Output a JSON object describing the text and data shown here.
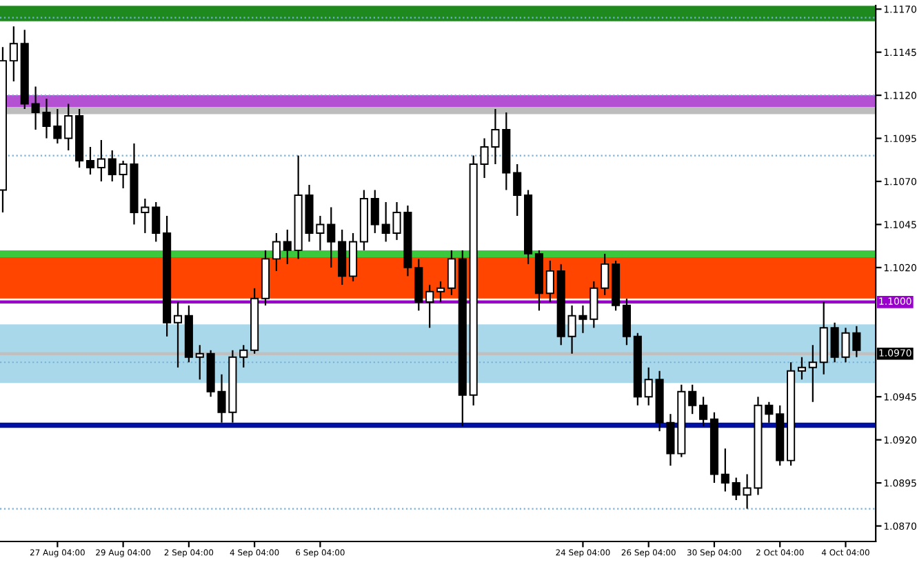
{
  "chart_data": {
    "type": "candlestick",
    "categories": [
      null,
      null,
      null,
      null,
      null,
      "27 Aug 04:00",
      null,
      null,
      null,
      null,
      null,
      "29 Aug 04:00",
      null,
      null,
      null,
      null,
      null,
      "2 Sep 04:00",
      null,
      null,
      null,
      null,
      null,
      "4 Sep 04:00",
      null,
      null,
      null,
      null,
      null,
      "6 Sep 04:00",
      null,
      null,
      null,
      null,
      null,
      null,
      null,
      null,
      null,
      null,
      null,
      null,
      null,
      null,
      null,
      null,
      null,
      null,
      null,
      null,
      null,
      null,
      null,
      "24 Sep 04:00",
      null,
      null,
      null,
      null,
      null,
      "26 Sep 04:00",
      null,
      null,
      null,
      null,
      null,
      "30 Sep 04:00",
      null,
      null,
      null,
      null,
      null,
      "2 Oct 04:00",
      null,
      null,
      null,
      null,
      null,
      "4 Oct 04:00",
      null
    ],
    "ohlc": [
      [
        1.1065,
        1.1148,
        1.1052,
        1.114
      ],
      [
        1.114,
        1.116,
        1.1128,
        1.115
      ],
      [
        1.115,
        1.1158,
        1.1112,
        1.1115
      ],
      [
        1.1115,
        1.1125,
        1.11,
        1.111
      ],
      [
        1.111,
        1.1118,
        1.1095,
        1.1102
      ],
      [
        1.1102,
        1.1112,
        1.1092,
        1.1095
      ],
      [
        1.1095,
        1.1115,
        1.1088,
        1.1108
      ],
      [
        1.1108,
        1.1112,
        1.1078,
        1.1082
      ],
      [
        1.1082,
        1.109,
        1.1074,
        1.1078
      ],
      [
        1.1078,
        1.1094,
        1.107,
        1.1083
      ],
      [
        1.1083,
        1.1088,
        1.107,
        1.1074
      ],
      [
        1.1074,
        1.1082,
        1.1066,
        1.108
      ],
      [
        1.108,
        1.1092,
        1.1045,
        1.1052
      ],
      [
        1.1052,
        1.106,
        1.104,
        1.1055
      ],
      [
        1.1055,
        1.1058,
        1.1035,
        1.104
      ],
      [
        1.104,
        1.105,
        1.098,
        1.0988
      ],
      [
        1.0988,
        1.1,
        1.0962,
        1.0992
      ],
      [
        1.0992,
        1.0998,
        1.0965,
        1.0968
      ],
      [
        1.0968,
        1.0975,
        1.0955,
        1.097
      ],
      [
        1.097,
        1.0972,
        1.0945,
        1.0948
      ],
      [
        1.0948,
        1.0958,
        1.093,
        1.0936
      ],
      [
        1.0936,
        1.0972,
        1.093,
        1.0968
      ],
      [
        1.0968,
        1.0975,
        1.0962,
        1.0972
      ],
      [
        1.0972,
        1.1008,
        1.097,
        1.1002
      ],
      [
        1.1002,
        1.103,
        1.0998,
        1.1025
      ],
      [
        1.1025,
        1.104,
        1.1018,
        1.1035
      ],
      [
        1.1035,
        1.1042,
        1.1022,
        1.103
      ],
      [
        1.103,
        1.1085,
        1.1025,
        1.1062
      ],
      [
        1.1062,
        1.1068,
        1.1035,
        1.104
      ],
      [
        1.104,
        1.105,
        1.103,
        1.1045
      ],
      [
        1.1045,
        1.1055,
        1.102,
        1.1035
      ],
      [
        1.1035,
        1.1042,
        1.101,
        1.1015
      ],
      [
        1.1015,
        1.104,
        1.1012,
        1.1035
      ],
      [
        1.1035,
        1.1065,
        1.103,
        1.106
      ],
      [
        1.106,
        1.1065,
        1.104,
        1.1045
      ],
      [
        1.1045,
        1.1058,
        1.1035,
        1.104
      ],
      [
        1.104,
        1.1058,
        1.1036,
        1.1052
      ],
      [
        1.1052,
        1.1056,
        1.1015,
        1.102
      ],
      [
        1.102,
        1.1025,
        1.0995,
        1.1
      ],
      [
        1.1,
        1.101,
        1.0985,
        1.1006
      ],
      [
        1.1006,
        1.1012,
        1.1,
        1.1008
      ],
      [
        1.1008,
        1.103,
        1.1004,
        1.1025
      ],
      [
        1.1025,
        1.103,
        1.0928,
        1.0946
      ],
      [
        1.0946,
        1.1085,
        1.094,
        1.108
      ],
      [
        1.108,
        1.1095,
        1.1072,
        1.109
      ],
      [
        1.109,
        1.1112,
        1.108,
        1.11
      ],
      [
        1.11,
        1.111,
        1.1065,
        1.1075
      ],
      [
        1.1075,
        1.108,
        1.105,
        1.1062
      ],
      [
        1.1062,
        1.1065,
        1.1022,
        1.1028
      ],
      [
        1.1028,
        1.103,
        1.0995,
        1.1005
      ],
      [
        1.1005,
        1.1024,
        1.1,
        1.1018
      ],
      [
        1.1018,
        1.1022,
        1.0975,
        1.098
      ],
      [
        1.098,
        1.0998,
        1.097,
        1.0992
      ],
      [
        1.0992,
        1.0998,
        1.0982,
        1.099
      ],
      [
        1.099,
        1.1012,
        1.0985,
        1.1008
      ],
      [
        1.1008,
        1.1028,
        1.1004,
        1.1022
      ],
      [
        1.1022,
        1.1024,
        1.0995,
        1.0998
      ],
      [
        1.0998,
        1.1002,
        1.0975,
        1.098
      ],
      [
        1.098,
        1.0982,
        1.094,
        1.0945
      ],
      [
        1.0945,
        1.0962,
        1.094,
        1.0955
      ],
      [
        1.0955,
        1.096,
        1.0925,
        1.093
      ],
      [
        1.093,
        1.0935,
        1.0905,
        1.0912
      ],
      [
        1.0912,
        1.0952,
        1.091,
        1.0948
      ],
      [
        1.0948,
        1.0952,
        1.0935,
        1.094
      ],
      [
        1.094,
        1.0945,
        1.0928,
        1.0932
      ],
      [
        1.0932,
        1.0936,
        1.0895,
        1.09
      ],
      [
        1.09,
        1.0915,
        1.089,
        1.0895
      ],
      [
        1.0895,
        1.0898,
        1.0885,
        1.0888
      ],
      [
        1.0888,
        1.09,
        1.088,
        1.0892
      ],
      [
        1.0892,
        1.0945,
        1.0888,
        1.094
      ],
      [
        1.094,
        1.0942,
        1.093,
        1.0935
      ],
      [
        1.0935,
        1.094,
        1.0905,
        1.0908
      ],
      [
        1.0908,
        1.0965,
        1.0905,
        1.096
      ],
      [
        1.096,
        1.0968,
        1.0955,
        1.0962
      ],
      [
        1.0962,
        1.0975,
        1.0942,
        1.0965
      ],
      [
        1.0965,
        1.1,
        1.0958,
        1.0985
      ],
      [
        1.0985,
        1.0988,
        1.0965,
        1.0968
      ],
      [
        1.0968,
        1.0985,
        1.0965,
        1.0982
      ],
      [
        1.0982,
        1.0986,
        1.0968,
        1.0972
      ]
    ],
    "ylim": [
      1.0861,
      1.1172
    ],
    "yticks": [
      {
        "value": 1.117,
        "label": "1.1170"
      },
      {
        "value": 1.1145,
        "label": "1.1145"
      },
      {
        "value": 1.112,
        "label": "1.1120"
      },
      {
        "value": 1.1095,
        "label": "1.1095"
      },
      {
        "value": 1.107,
        "label": "1.1070"
      },
      {
        "value": 1.1045,
        "label": "1.1045"
      },
      {
        "value": 1.102,
        "label": "1.1020"
      },
      {
        "value": 1.0945,
        "label": "1.0945"
      },
      {
        "value": 1.092,
        "label": "1.0920"
      },
      {
        "value": 1.0895,
        "label": "1.0895"
      },
      {
        "value": 1.087,
        "label": "1.0870"
      }
    ],
    "bands": [
      {
        "axis": "y",
        "from": 1.1163,
        "to": 1.1172,
        "color": "#1e8a1e"
      },
      {
        "axis": "y",
        "from": 1.1113,
        "to": 1.112,
        "color": "#b450d2"
      },
      {
        "axis": "y",
        "from": 1.1109,
        "to": 1.1113,
        "color": "#bdbdbd"
      },
      {
        "axis": "y",
        "from": 1.1026,
        "to": 1.103,
        "color": "#3cc83c"
      },
      {
        "axis": "y",
        "from": 1.1002,
        "to": 1.1026,
        "color": "#ff4500"
      },
      {
        "axis": "y",
        "from": 1.0927,
        "to": 1.093,
        "color": "#0010a0"
      },
      {
        "axis": "y",
        "from": 1.0953,
        "to": 1.0987,
        "color": "#a8d8ea"
      }
    ],
    "ref_lines": [
      {
        "axis": "y",
        "value": 1.1,
        "label": "1.1000",
        "color": "#9900cc",
        "line_style": "solid"
      },
      {
        "axis": "y",
        "value": 1.097,
        "label": "1.0970",
        "color": "#c0c0c0",
        "line_style": "solid"
      },
      {
        "axis": "y",
        "value": 1.1165,
        "color": "#7ab0d8",
        "line_style": "dotted"
      },
      {
        "axis": "y",
        "value": 1.112,
        "color": "#7ab0d8",
        "line_style": "dotted"
      },
      {
        "axis": "y",
        "value": 1.1085,
        "color": "#7ab0d8",
        "line_style": "dotted"
      },
      {
        "axis": "y",
        "value": 1.0965,
        "color": "#7ab0d8",
        "line_style": "dotted"
      },
      {
        "axis": "y",
        "value": 1.088,
        "color": "#7ab0d8",
        "line_style": "dotted"
      }
    ],
    "grid": false
  }
}
